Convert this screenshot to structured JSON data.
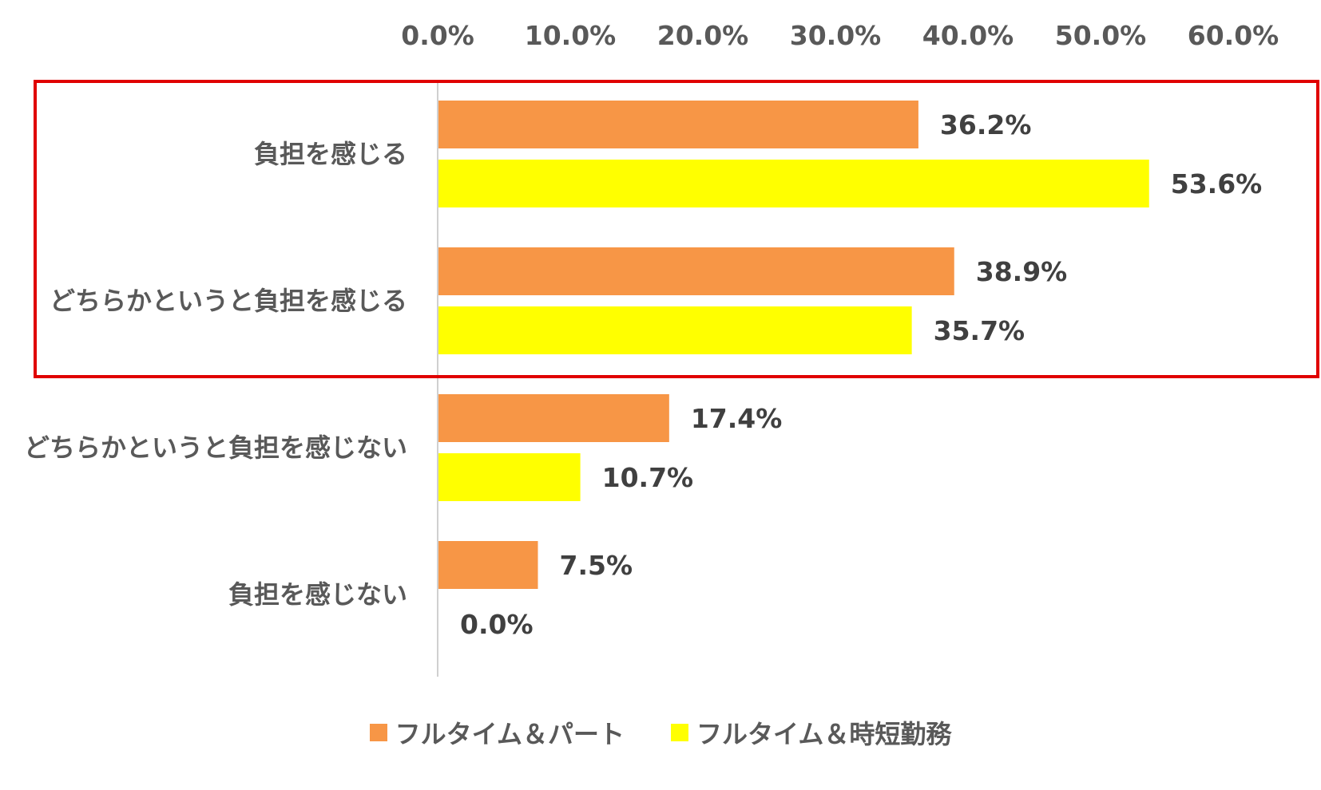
{
  "colors": {
    "series_1": "#F79646",
    "series_2": "#FFFF00",
    "highlight_box": "#E00000",
    "axis_line": "#D0D0D0"
  },
  "chart_data": {
    "type": "bar",
    "orientation": "horizontal",
    "x_axis_position": "top",
    "grid": false,
    "legend_position": "bottom",
    "xlim": [
      0,
      60
    ],
    "x_ticks": [
      "0.0%",
      "10.0%",
      "20.0%",
      "30.0%",
      "40.0%",
      "50.0%",
      "60.0%"
    ],
    "categories": [
      "負担を感じる",
      "どちらかというと負担を感じる",
      "どちらかというと負担を感じない",
      "負担を感じない"
    ],
    "series": [
      {
        "name": "フルタイム＆パート",
        "values": [
          36.2,
          38.9,
          17.4,
          7.5
        ],
        "labels": [
          "36.2%",
          "38.9%",
          "17.4%",
          "7.5%"
        ]
      },
      {
        "name": "フルタイム＆時短勤務",
        "values": [
          53.6,
          35.7,
          10.7,
          0.0
        ],
        "labels": [
          "53.6%",
          "35.7%",
          "10.7%",
          "0.0%"
        ]
      }
    ],
    "highlighted_categories": [
      "負担を感じる",
      "どちらかというと負担を感じる"
    ]
  }
}
